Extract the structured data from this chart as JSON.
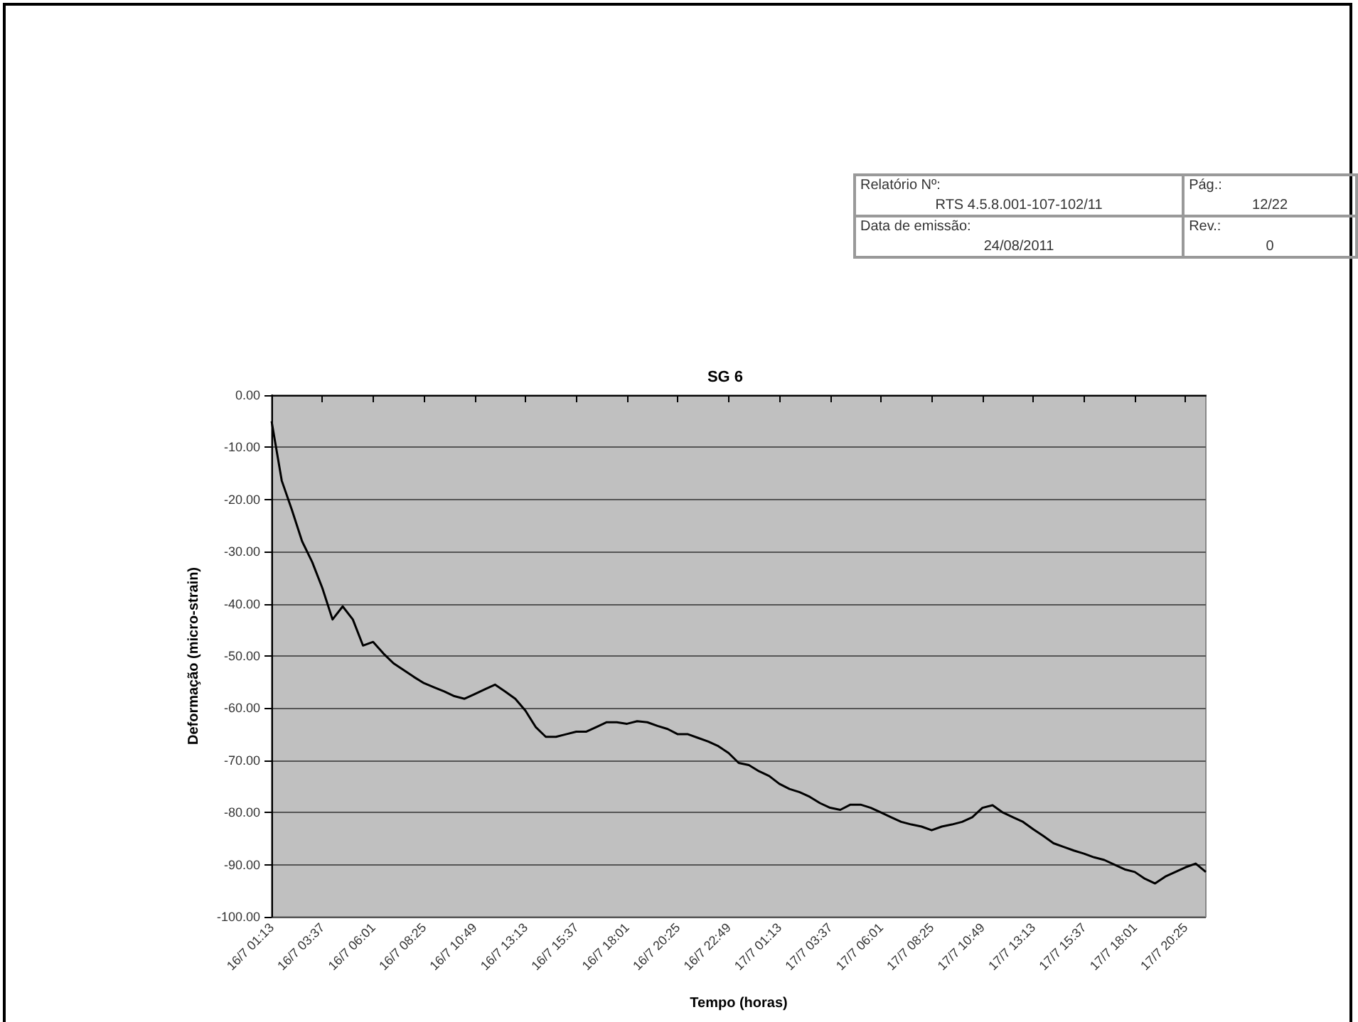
{
  "chart_data": {
    "type": "line",
    "title": "SG 6",
    "xlabel": "Tempo (horas)",
    "ylabel": "Deformação (micro-strain)",
    "annotations": [
      "Relatório Nº:",
      "RTS 4.5.8.001-107-102/11",
      "Pág.:",
      "12/22",
      "Data de emissão:",
      "24/08/2011",
      "Rev.:",
      "0"
    ],
    "categories": [
      "16/7 01:13",
      null,
      null,
      null,
      null,
      "16/7 03:37",
      null,
      null,
      null,
      null,
      "16/7 06:01",
      null,
      null,
      null,
      null,
      "16/7 08:25",
      null,
      null,
      null,
      null,
      "16/7 10:49",
      null,
      null,
      null,
      null,
      "16/7 13:13",
      null,
      null,
      null,
      null,
      "16/7 15:37",
      null,
      null,
      null,
      null,
      "16/7 18:01",
      null,
      null,
      null,
      null,
      "16/7 20:25",
      null,
      null,
      null,
      null,
      "16/7 22:49",
      null,
      null,
      null,
      null,
      "17/7 01:13",
      null,
      null,
      null,
      null,
      "17/7 03:37",
      null,
      null,
      null,
      null,
      "17/7 06:01",
      null,
      null,
      null,
      null,
      "17/7 08:25",
      null,
      null,
      null,
      null,
      "17/7 10:49",
      null,
      null,
      null,
      null,
      "17/7 13:13",
      null,
      null,
      null,
      null,
      "17/7 15:37",
      null,
      null,
      null,
      null,
      "17/7 18:01",
      null,
      null,
      null,
      null,
      "17/7 20:25",
      null,
      null
    ],
    "series": [
      {
        "color": "#000000",
        "values": [
          -5,
          -16.4,
          -22,
          -28,
          -32,
          -37,
          -43,
          -40.5,
          -43,
          -48,
          -47.3,
          -49.5,
          -51.4,
          -52.7,
          -54,
          -55.2,
          -56,
          -56.8,
          -57.7,
          -58.2,
          -57.3,
          -56.4,
          -55.5,
          -56.8,
          -58.2,
          -60.5,
          -63.6,
          -65.5,
          -65.5,
          -65,
          -64.5,
          -64.5,
          -63.6,
          -62.7,
          -62.7,
          -63,
          -62.5,
          -62.7,
          -63.4,
          -64,
          -65,
          -65,
          -65.7,
          -66.4,
          -67.3,
          -68.6,
          -70.5,
          -70.9,
          -72.1,
          -73,
          -74.5,
          -75.5,
          -76.1,
          -77,
          -78.2,
          -79.1,
          -79.5,
          -78.5,
          -78.5,
          -79.1,
          -80,
          -80.9,
          -81.8,
          -82.3,
          -82.7,
          -83.4,
          -82.7,
          -82.3,
          -81.8,
          -80.9,
          -79.1,
          -78.6,
          -80,
          -80.9,
          -81.8,
          -83.2,
          -84.5,
          -85.9,
          -86.6,
          -87.3,
          -87.9,
          -88.6,
          -89.1,
          -90,
          -90.9,
          -91.4,
          -92.7,
          -93.6,
          -92.3,
          -91.4,
          -90.5,
          -89.8,
          -91.4
        ]
      }
    ],
    "ylim": [
      -100,
      0
    ],
    "yticks": [
      {
        "value": -100,
        "label": "-100.00"
      },
      {
        "value": -90,
        "label": "-90.00"
      },
      {
        "value": -80,
        "label": "-80.00"
      },
      {
        "value": -70,
        "label": "-70.00"
      },
      {
        "value": -60,
        "label": "-60.00"
      },
      {
        "value": -50,
        "label": "-50.00"
      },
      {
        "value": -40,
        "label": "-40.00"
      },
      {
        "value": -30,
        "label": "-30.00"
      },
      {
        "value": -20,
        "label": "-20.00"
      },
      {
        "value": -10,
        "label": "-10.00"
      },
      {
        "value": 0,
        "label": "0.00"
      }
    ],
    "grid": "y",
    "marker": "none",
    "line_style": "solid"
  }
}
